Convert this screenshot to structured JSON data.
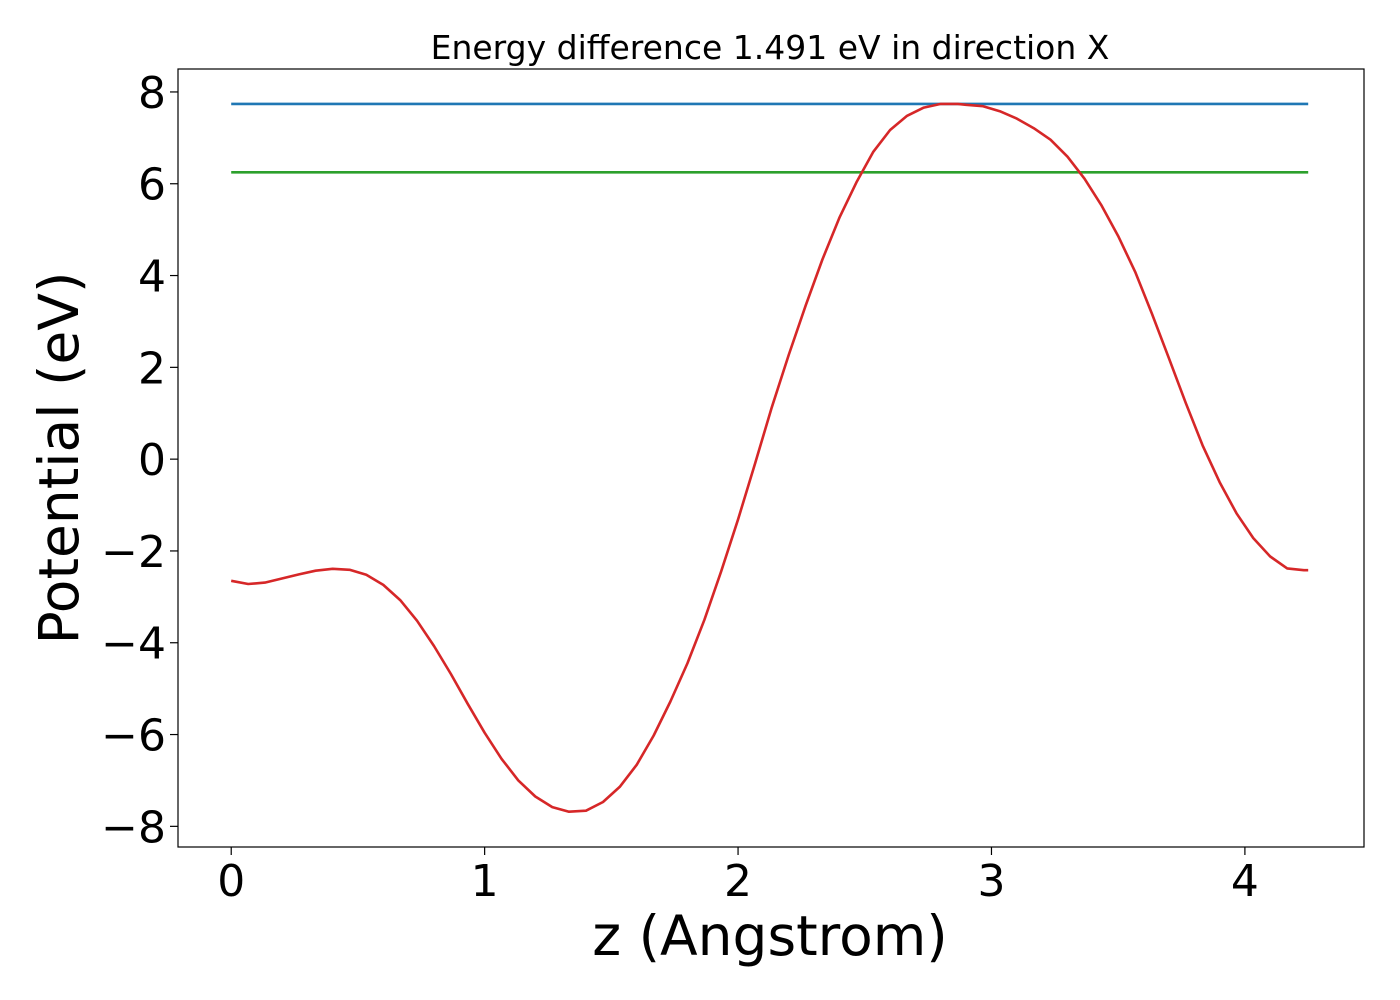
{
  "chart_data": {
    "type": "line",
    "title": "Energy difference 1.491 eV in direction X",
    "xlabel": "z (Angstrom)",
    "ylabel": "Potential (eV)",
    "xlim": [
      -0.21,
      4.47
    ],
    "ylim": [
      -8.45,
      8.5
    ],
    "xticks": [
      0,
      1,
      2,
      3,
      4
    ],
    "xtick_labels": [
      "0",
      "1",
      "2",
      "3",
      "4"
    ],
    "yticks": [
      -8,
      -6,
      -4,
      -2,
      0,
      2,
      4,
      6,
      8
    ],
    "ytick_labels": [
      "−8",
      "−6",
      "−4",
      "−2",
      "0",
      "2",
      "4",
      "6",
      "8"
    ],
    "grid": false,
    "legend": "none",
    "series": [
      {
        "color": "#d62728",
        "x": [
          0.0,
          0.067,
          0.133,
          0.2,
          0.267,
          0.333,
          0.4,
          0.467,
          0.533,
          0.6,
          0.667,
          0.733,
          0.8,
          0.867,
          0.933,
          1.0,
          1.067,
          1.133,
          1.2,
          1.267,
          1.333,
          1.4,
          1.467,
          1.533,
          1.6,
          1.667,
          1.733,
          1.8,
          1.867,
          1.933,
          2.0,
          2.067,
          2.133,
          2.2,
          2.267,
          2.333,
          2.4,
          2.467,
          2.533,
          2.6,
          2.667,
          2.733,
          2.8,
          2.867,
          2.9,
          2.967,
          3.033,
          3.1,
          3.167,
          3.233,
          3.3,
          3.367,
          3.433,
          3.5,
          3.567,
          3.633,
          3.7,
          3.767,
          3.833,
          3.9,
          3.967,
          4.033,
          4.1,
          4.167,
          4.233,
          4.25
        ],
        "y": [
          -2.65,
          -2.72,
          -2.69,
          -2.6,
          -2.51,
          -2.43,
          -2.39,
          -2.41,
          -2.52,
          -2.74,
          -3.07,
          -3.52,
          -4.07,
          -4.68,
          -5.33,
          -5.96,
          -6.53,
          -7.0,
          -7.35,
          -7.58,
          -7.68,
          -7.66,
          -7.47,
          -7.14,
          -6.66,
          -6.02,
          -5.28,
          -4.45,
          -3.5,
          -2.45,
          -1.31,
          -0.1,
          1.13,
          2.27,
          3.35,
          4.35,
          5.26,
          6.03,
          6.69,
          7.17,
          7.48,
          7.66,
          7.74,
          7.74,
          7.72,
          7.69,
          7.58,
          7.42,
          7.21,
          6.96,
          6.59,
          6.11,
          5.54,
          4.86,
          4.08,
          3.17,
          2.2,
          1.22,
          0.3,
          -0.5,
          -1.18,
          -1.72,
          -2.12,
          -2.38,
          -2.42,
          -2.42
        ]
      },
      {
        "color": "#1f77b4",
        "x": [
          0.0,
          4.25
        ],
        "y": [
          7.74,
          7.74
        ]
      },
      {
        "color": "#2ca02c",
        "x": [
          0.0,
          4.25
        ],
        "y": [
          6.25,
          6.25
        ]
      }
    ]
  }
}
